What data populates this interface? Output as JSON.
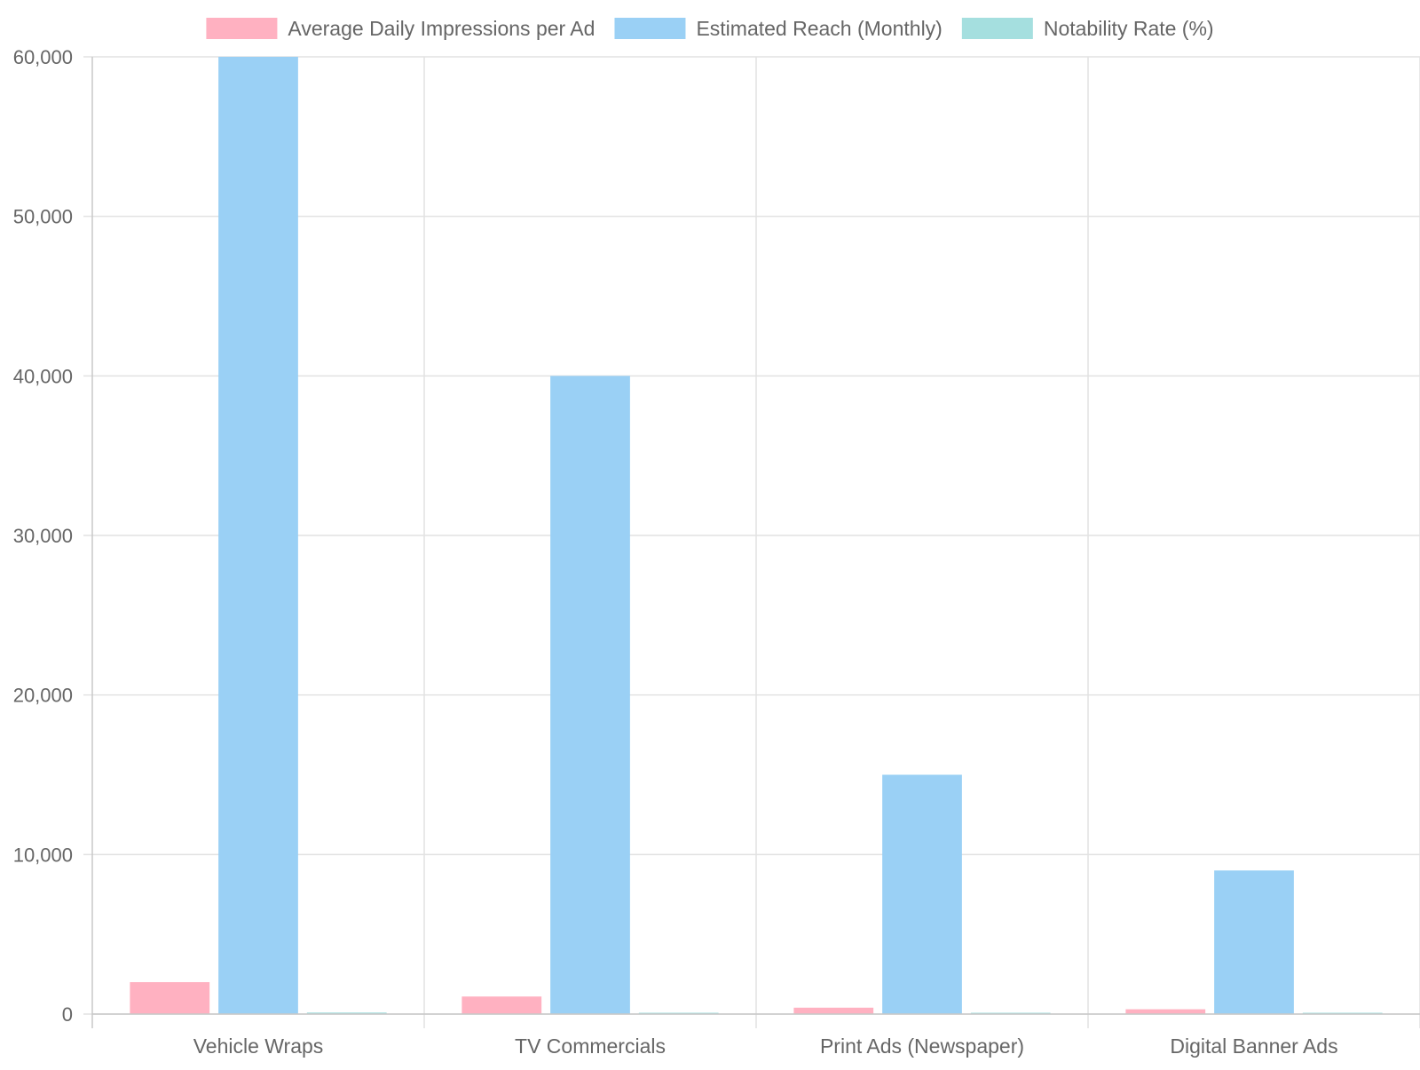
{
  "chart_data": {
    "type": "bar",
    "title": "",
    "xlabel": "",
    "ylabel": "",
    "categories": [
      "Vehicle Wraps",
      "TV Commercials",
      "Print Ads (Newspaper)",
      "Digital Banner Ads"
    ],
    "series": [
      {
        "name": "Average Daily Impressions per Ad",
        "color": "#ffb1c1",
        "values": [
          2000,
          1100,
          400,
          300
        ]
      },
      {
        "name": "Estimated Reach (Monthly)",
        "color": "#9ad0f5",
        "values": [
          60000,
          40000,
          15000,
          9000
        ]
      },
      {
        "name": "Notability Rate (%)",
        "color": "#a5dfdf",
        "values": [
          97,
          30,
          10,
          20
        ]
      }
    ],
    "ylim": [
      0,
      60000
    ],
    "yticks": [
      0,
      10000,
      20000,
      30000,
      40000,
      50000,
      60000
    ],
    "ytick_labels": [
      "0",
      "10,000",
      "20,000",
      "30,000",
      "40,000",
      "50,000",
      "60,000"
    ],
    "grid": true,
    "legend_position": "top"
  }
}
